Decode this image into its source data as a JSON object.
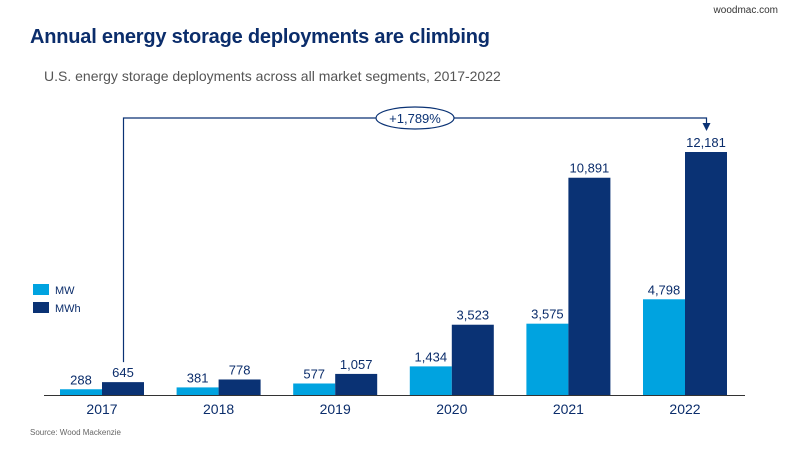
{
  "brand": "woodmac.com",
  "chart_data": {
    "type": "bar",
    "title": "Annual energy storage deployments are climbing",
    "subtitle": "U.S. energy storage deployments across all market segments, 2017-2022",
    "categories": [
      "2017",
      "2018",
      "2019",
      "2020",
      "2021",
      "2022"
    ],
    "series": [
      {
        "name": "MW",
        "color": "#00a3e0",
        "values": [
          288,
          381,
          577,
          1434,
          3575,
          4798
        ],
        "labels": [
          "288",
          "381",
          "577",
          "1,434",
          "3,575",
          "4,798"
        ]
      },
      {
        "name": "MWh",
        "color": "#0a3274",
        "values": [
          645,
          778,
          1057,
          3523,
          10891,
          12181
        ],
        "labels": [
          "645",
          "778",
          "1,057",
          "3,523",
          "10,891",
          "12,181"
        ]
      }
    ],
    "annotation": {
      "text": "+1,789%",
      "from": "2017 MWh",
      "to": "2022 MWh"
    },
    "legend_position": "left",
    "grid": false,
    "ylim": [
      0,
      12500
    ],
    "source": "Source: Wood Mackenzie"
  }
}
